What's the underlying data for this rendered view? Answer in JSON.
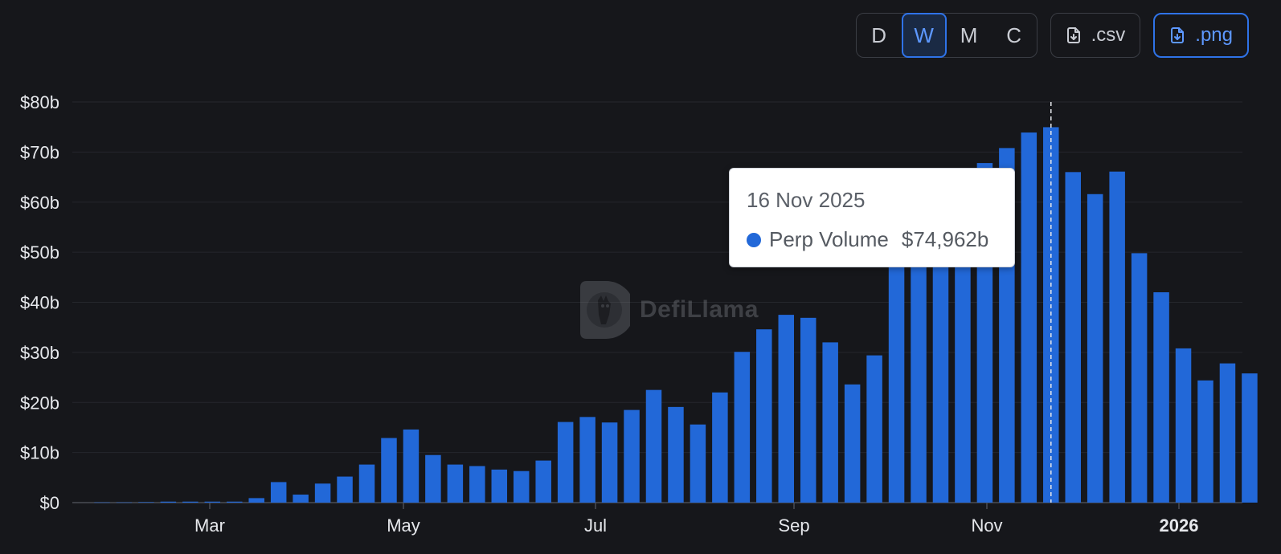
{
  "toolbar": {
    "granularity": [
      {
        "label": "D",
        "active": false
      },
      {
        "label": "W",
        "active": true
      },
      {
        "label": "M",
        "active": false
      },
      {
        "label": "C",
        "active": false
      }
    ],
    "csv_label": ".csv",
    "png_label": ".png"
  },
  "tooltip": {
    "date": "16 Nov 2025",
    "series": "Perp Volume",
    "value": "$74,962b"
  },
  "watermark": {
    "text": "DefiLlama"
  },
  "colors": {
    "bar": "#2268d8",
    "accent": "#2f73e8",
    "background": "#16171b"
  },
  "chart_data": {
    "type": "bar",
    "series": [
      {
        "name": "Perp Volume",
        "values": [
          0.05,
          0.05,
          0.1,
          0.2,
          0.2,
          0.2,
          0.2,
          0.9,
          4.1,
          1.6,
          3.8,
          5.2,
          7.6,
          12.9,
          14.6,
          9.5,
          7.6,
          7.3,
          6.6,
          6.3,
          8.4,
          16.1,
          17.1,
          16.0,
          18.5,
          22.5,
          19.1,
          15.6,
          22.0,
          30.1,
          34.6,
          37.5,
          36.9,
          32.0,
          23.6,
          29.4,
          49.5,
          50.0,
          52.0,
          57.0,
          67.8,
          70.8,
          73.9,
          74.962,
          66.0,
          61.6,
          66.1,
          49.8,
          42.0,
          30.8,
          24.4,
          27.8,
          25.8
        ]
      }
    ],
    "x_tick_labels": [
      "Mar",
      "May",
      "Jul",
      "Sep",
      "Nov",
      "2026"
    ],
    "y_tick_labels": [
      "$0",
      "$10b",
      "$20b",
      "$30b",
      "$40b",
      "$50b",
      "$60b",
      "$70b",
      "$80b"
    ],
    "ylim": [
      0,
      80
    ],
    "highlighted_index": 43,
    "grid": true
  }
}
